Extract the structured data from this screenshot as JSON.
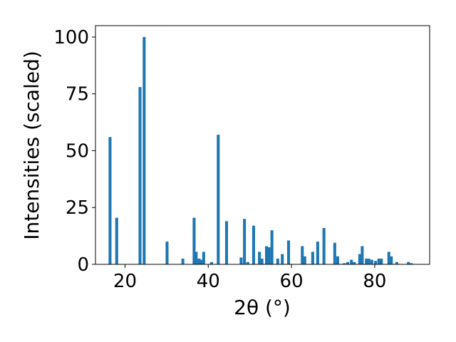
{
  "chart_data": {
    "type": "bar",
    "title": "",
    "xlabel": "2θ (°)",
    "ylabel": "Intensities (scaled)",
    "xlim": [
      12.9,
      93.2
    ],
    "ylim": [
      0,
      105
    ],
    "xticks": [
      20,
      40,
      60,
      80
    ],
    "yticks": [
      0,
      25,
      50,
      75,
      100
    ],
    "grid": false,
    "legend": "none",
    "bar_color": "#1f77b4",
    "bar_width": 0.7,
    "series": [
      {
        "x": [
          16.4,
          18.0,
          23.6,
          24.6,
          30.1,
          33.9,
          36.6,
          37.1,
          37.8,
          38.3,
          38.9,
          40.8,
          42.4,
          44.4,
          47.9,
          48.7,
          49.5,
          50.9,
          52.3,
          52.9,
          54.0,
          54.6,
          55.3,
          56.7,
          57.8,
          59.3,
          62.6,
          63.2,
          65.1,
          66.3,
          67.8,
          70.4,
          71.1,
          72.7,
          73.5,
          74.4,
          75.1,
          76.4,
          77.0,
          78.0,
          78.6,
          79.3,
          80.2,
          81.0,
          81.6,
          83.4,
          84.0,
          85.3,
          88.1,
          88.8
        ],
        "y": [
          56,
          20.5,
          78,
          100,
          10,
          2.5,
          20.5,
          5.5,
          2.5,
          2,
          5.5,
          1,
          57,
          19,
          3,
          20,
          1,
          17,
          5.5,
          2.5,
          8,
          7.5,
          15,
          2.5,
          4.5,
          10.5,
          8,
          3.5,
          5.5,
          10,
          16,
          9.5,
          3.5,
          0.5,
          1,
          2,
          1,
          4.5,
          8,
          2.5,
          2.5,
          2,
          1.5,
          2.5,
          2.5,
          5.5,
          3.5,
          1,
          1,
          0.5
        ]
      }
    ]
  }
}
